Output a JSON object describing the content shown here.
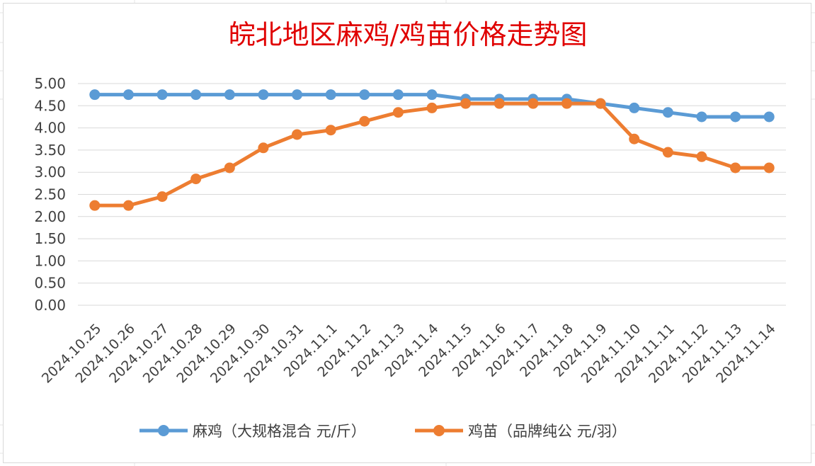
{
  "chart_data": {
    "type": "line",
    "title": "皖北地区麻鸡/鸡苗价格走势图",
    "categories": [
      "2024.10.25",
      "2024.10.26",
      "2024.10.27",
      "2024.10.28",
      "2024.10.29",
      "2024.10.30",
      "2024.10.31",
      "2024.11.1",
      "2024.11.2",
      "2024.11.3",
      "2024.11.4",
      "2024.11.5",
      "2024.11.6",
      "2024.11.7",
      "2024.11.8",
      "2024.11.9",
      "2024.11.10",
      "2024.11.11",
      "2024.11.12",
      "2024.11.13",
      "2024.11.14"
    ],
    "series": [
      {
        "name": "麻鸡（大规格混合 元/斤）",
        "color": "#5b9bd5",
        "values": [
          4.75,
          4.75,
          4.75,
          4.75,
          4.75,
          4.75,
          4.75,
          4.75,
          4.75,
          4.75,
          4.75,
          4.65,
          4.65,
          4.65,
          4.65,
          4.55,
          4.45,
          4.35,
          4.25,
          4.25,
          4.25
        ]
      },
      {
        "name": "鸡苗（品牌纯公 元/羽）",
        "color": "#ed7d31",
        "values": [
          2.25,
          2.25,
          2.45,
          2.85,
          3.1,
          3.55,
          3.85,
          3.95,
          4.15,
          4.35,
          4.45,
          4.55,
          4.55,
          4.55,
          4.55,
          4.55,
          3.75,
          3.45,
          3.35,
          3.1,
          3.1
        ]
      }
    ],
    "y_ticks": [
      "0.00",
      "0.50",
      "1.00",
      "1.50",
      "2.00",
      "2.50",
      "3.00",
      "3.50",
      "4.00",
      "4.50",
      "5.00"
    ],
    "ylim": [
      0,
      5
    ],
    "grid": true,
    "legend": "bottom",
    "title_color": "#e00000"
  }
}
